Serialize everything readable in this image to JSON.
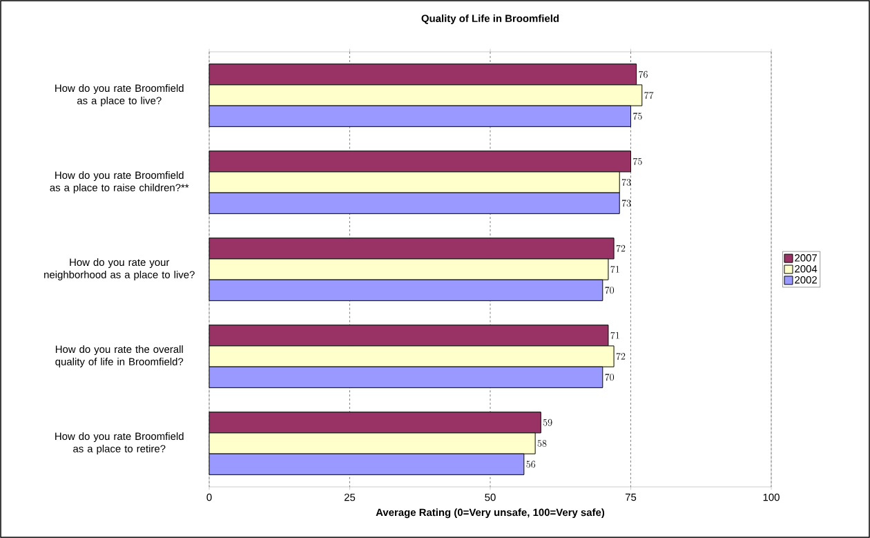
{
  "chart_data": {
    "type": "bar",
    "orientation": "horizontal",
    "title": "Quality of Life in Broomfield",
    "xlabel": "Average Rating (0=Very unsafe, 100=Very safe)",
    "categories": [
      "How do you rate Broomfield as a place to live?",
      "How do you rate Broomfield as a place to raise children?**",
      "How do you rate your neighborhood as a place to live?",
      "How do you rate the overall quality of life in Broomfield?",
      "How do you rate Broomfield as a place to retire?"
    ],
    "series": [
      {
        "name": "2007",
        "color": "#993366",
        "values": [
          76,
          75,
          72,
          71,
          59
        ]
      },
      {
        "name": "2004",
        "color": "#ffffcc",
        "values": [
          77,
          73,
          71,
          72,
          58
        ]
      },
      {
        "name": "2002",
        "color": "#9999ff",
        "values": [
          75,
          73,
          70,
          70,
          56
        ]
      }
    ],
    "xlim": [
      0,
      100
    ],
    "xticks": [
      0,
      25,
      50,
      75,
      100
    ],
    "grid": "x",
    "legend": "right",
    "data_labels": true
  }
}
